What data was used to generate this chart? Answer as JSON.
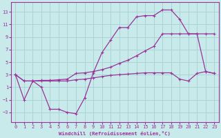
{
  "xlabel": "Windchill (Refroidissement éolien,°C)",
  "bg_color": "#c8eaea",
  "grid_color": "#aad4d4",
  "line_color": "#993399",
  "xlim": [
    -0.5,
    23.5
  ],
  "ylim": [
    -4.5,
    14.5
  ],
  "xticks": [
    0,
    1,
    2,
    3,
    4,
    5,
    6,
    7,
    8,
    9,
    10,
    11,
    12,
    13,
    14,
    15,
    16,
    17,
    18,
    19,
    20,
    21,
    22,
    23
  ],
  "yticks": [
    -3,
    -1,
    1,
    3,
    5,
    7,
    9,
    11,
    13
  ],
  "line1_x": [
    0,
    1,
    2,
    3,
    4,
    5,
    6,
    7,
    8,
    9,
    10,
    11,
    12,
    13,
    14,
    15,
    16,
    17,
    18,
    19,
    20,
    21,
    22,
    23
  ],
  "line1_y": [
    3,
    -1,
    2,
    1,
    -2.5,
    -2.5,
    -3.0,
    -3.2,
    -0.7,
    3.3,
    6.5,
    8.5,
    10.5,
    10.5,
    12.2,
    12.4,
    12.4,
    13.3,
    13.3,
    11.8,
    9.5,
    9.5,
    3.5,
    3.2
  ],
  "line2_x": [
    0,
    1,
    2,
    3,
    4,
    5,
    6,
    7,
    8,
    9,
    10,
    11,
    12,
    13,
    14,
    15,
    16,
    17,
    18,
    19,
    20,
    21,
    22,
    23
  ],
  "line2_y": [
    3,
    2,
    2,
    2.1,
    2.1,
    2.2,
    2.3,
    3.2,
    3.3,
    3.5,
    3.8,
    4.2,
    4.8,
    5.3,
    6.0,
    6.8,
    7.5,
    9.5,
    9.5,
    9.5,
    9.5,
    9.5,
    9.5,
    9.5
  ],
  "line3_x": [
    0,
    1,
    2,
    3,
    4,
    5,
    6,
    7,
    8,
    9,
    10,
    11,
    12,
    13,
    14,
    15,
    16,
    17,
    18,
    19,
    20,
    21,
    22,
    23
  ],
  "line3_y": [
    3,
    2,
    2,
    2,
    2,
    2,
    2,
    2.2,
    2.3,
    2.5,
    2.7,
    2.9,
    3.0,
    3.1,
    3.2,
    3.3,
    3.3,
    3.3,
    3.3,
    2.3,
    2.0,
    3.2,
    3.5,
    3.2
  ]
}
